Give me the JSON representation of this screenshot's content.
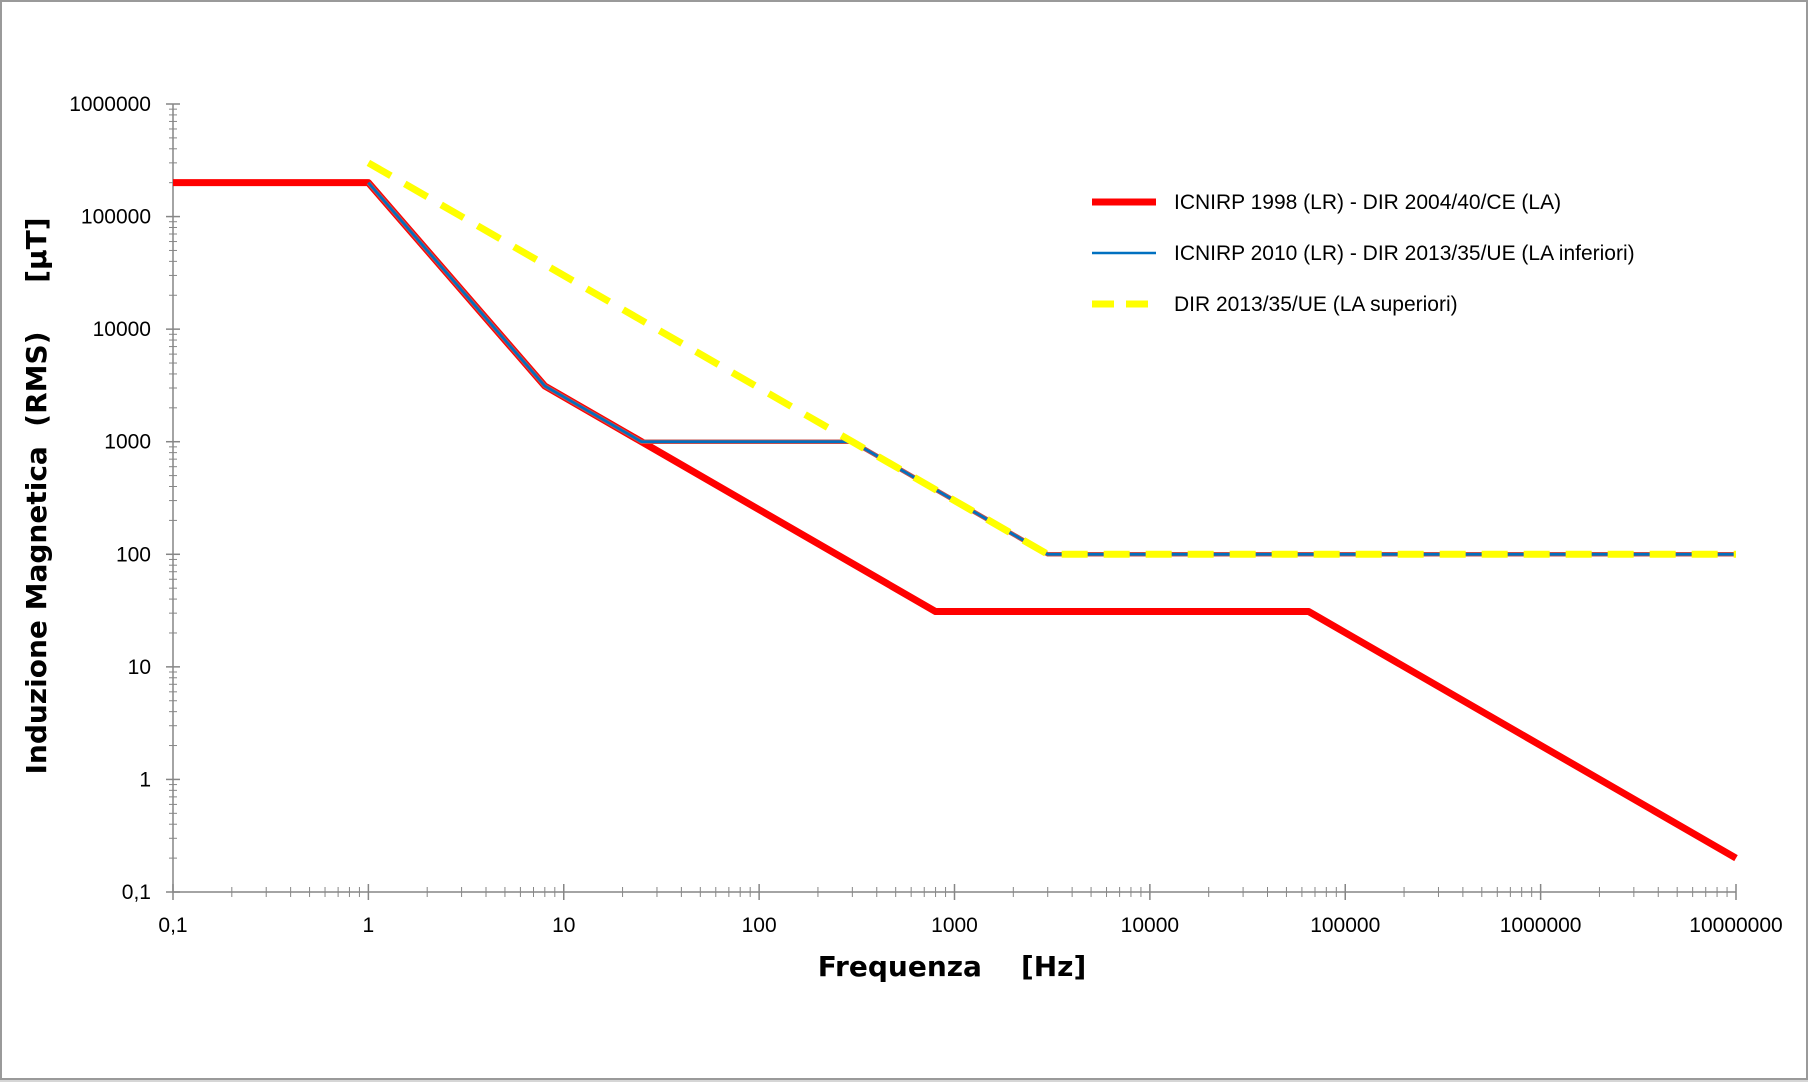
{
  "chart_data": {
    "type": "line",
    "xlabel": "Frequenza    [Hz]",
    "ylabel": "Induzione Magnetica  (RMS)     [µT]",
    "x_scale": "log",
    "y_scale": "log",
    "xlim": [
      0.1,
      10000000
    ],
    "ylim": [
      0.1,
      1000000
    ],
    "grid": false,
    "legend_position": "top-right",
    "x_tick_labels": [
      "0,1",
      "1",
      "10",
      "100",
      "1000",
      "10000",
      "100000",
      "1000000",
      "10000000"
    ],
    "y_tick_labels": [
      "0,1",
      "1",
      "10",
      "100",
      "1000",
      "10000",
      "100000",
      "1000000"
    ],
    "series": [
      {
        "name": "ICNIRP 1998 (LR)  -  DIR 2004/40/CE (LA)",
        "color": "#ff0000",
        "style": "solid-thick",
        "points": [
          [
            0.1,
            200000
          ],
          [
            1,
            200000
          ],
          [
            8,
            3125
          ],
          [
            25,
            1000
          ],
          [
            800,
            31
          ],
          [
            65000,
            31
          ],
          [
            10000000,
            0.2
          ]
        ]
      },
      {
        "name": "ICNIRP 2010 (LR)  -  DIR 2013/35/UE (LA inferiori)",
        "color": "#0070c0",
        "style": "solid-thin",
        "points": [
          [
            1,
            200000
          ],
          [
            8,
            3125
          ],
          [
            25,
            1000
          ],
          [
            300,
            1000
          ],
          [
            3000,
            100
          ],
          [
            10000000,
            100
          ]
        ]
      },
      {
        "name": "DIR 2013/35/UE (LA superiori)",
        "color": "#ffff00",
        "style": "dashed-thick",
        "points": [
          [
            1,
            300000
          ],
          [
            300,
            1000
          ],
          [
            3000,
            100
          ],
          [
            10000000,
            100
          ]
        ]
      }
    ]
  }
}
